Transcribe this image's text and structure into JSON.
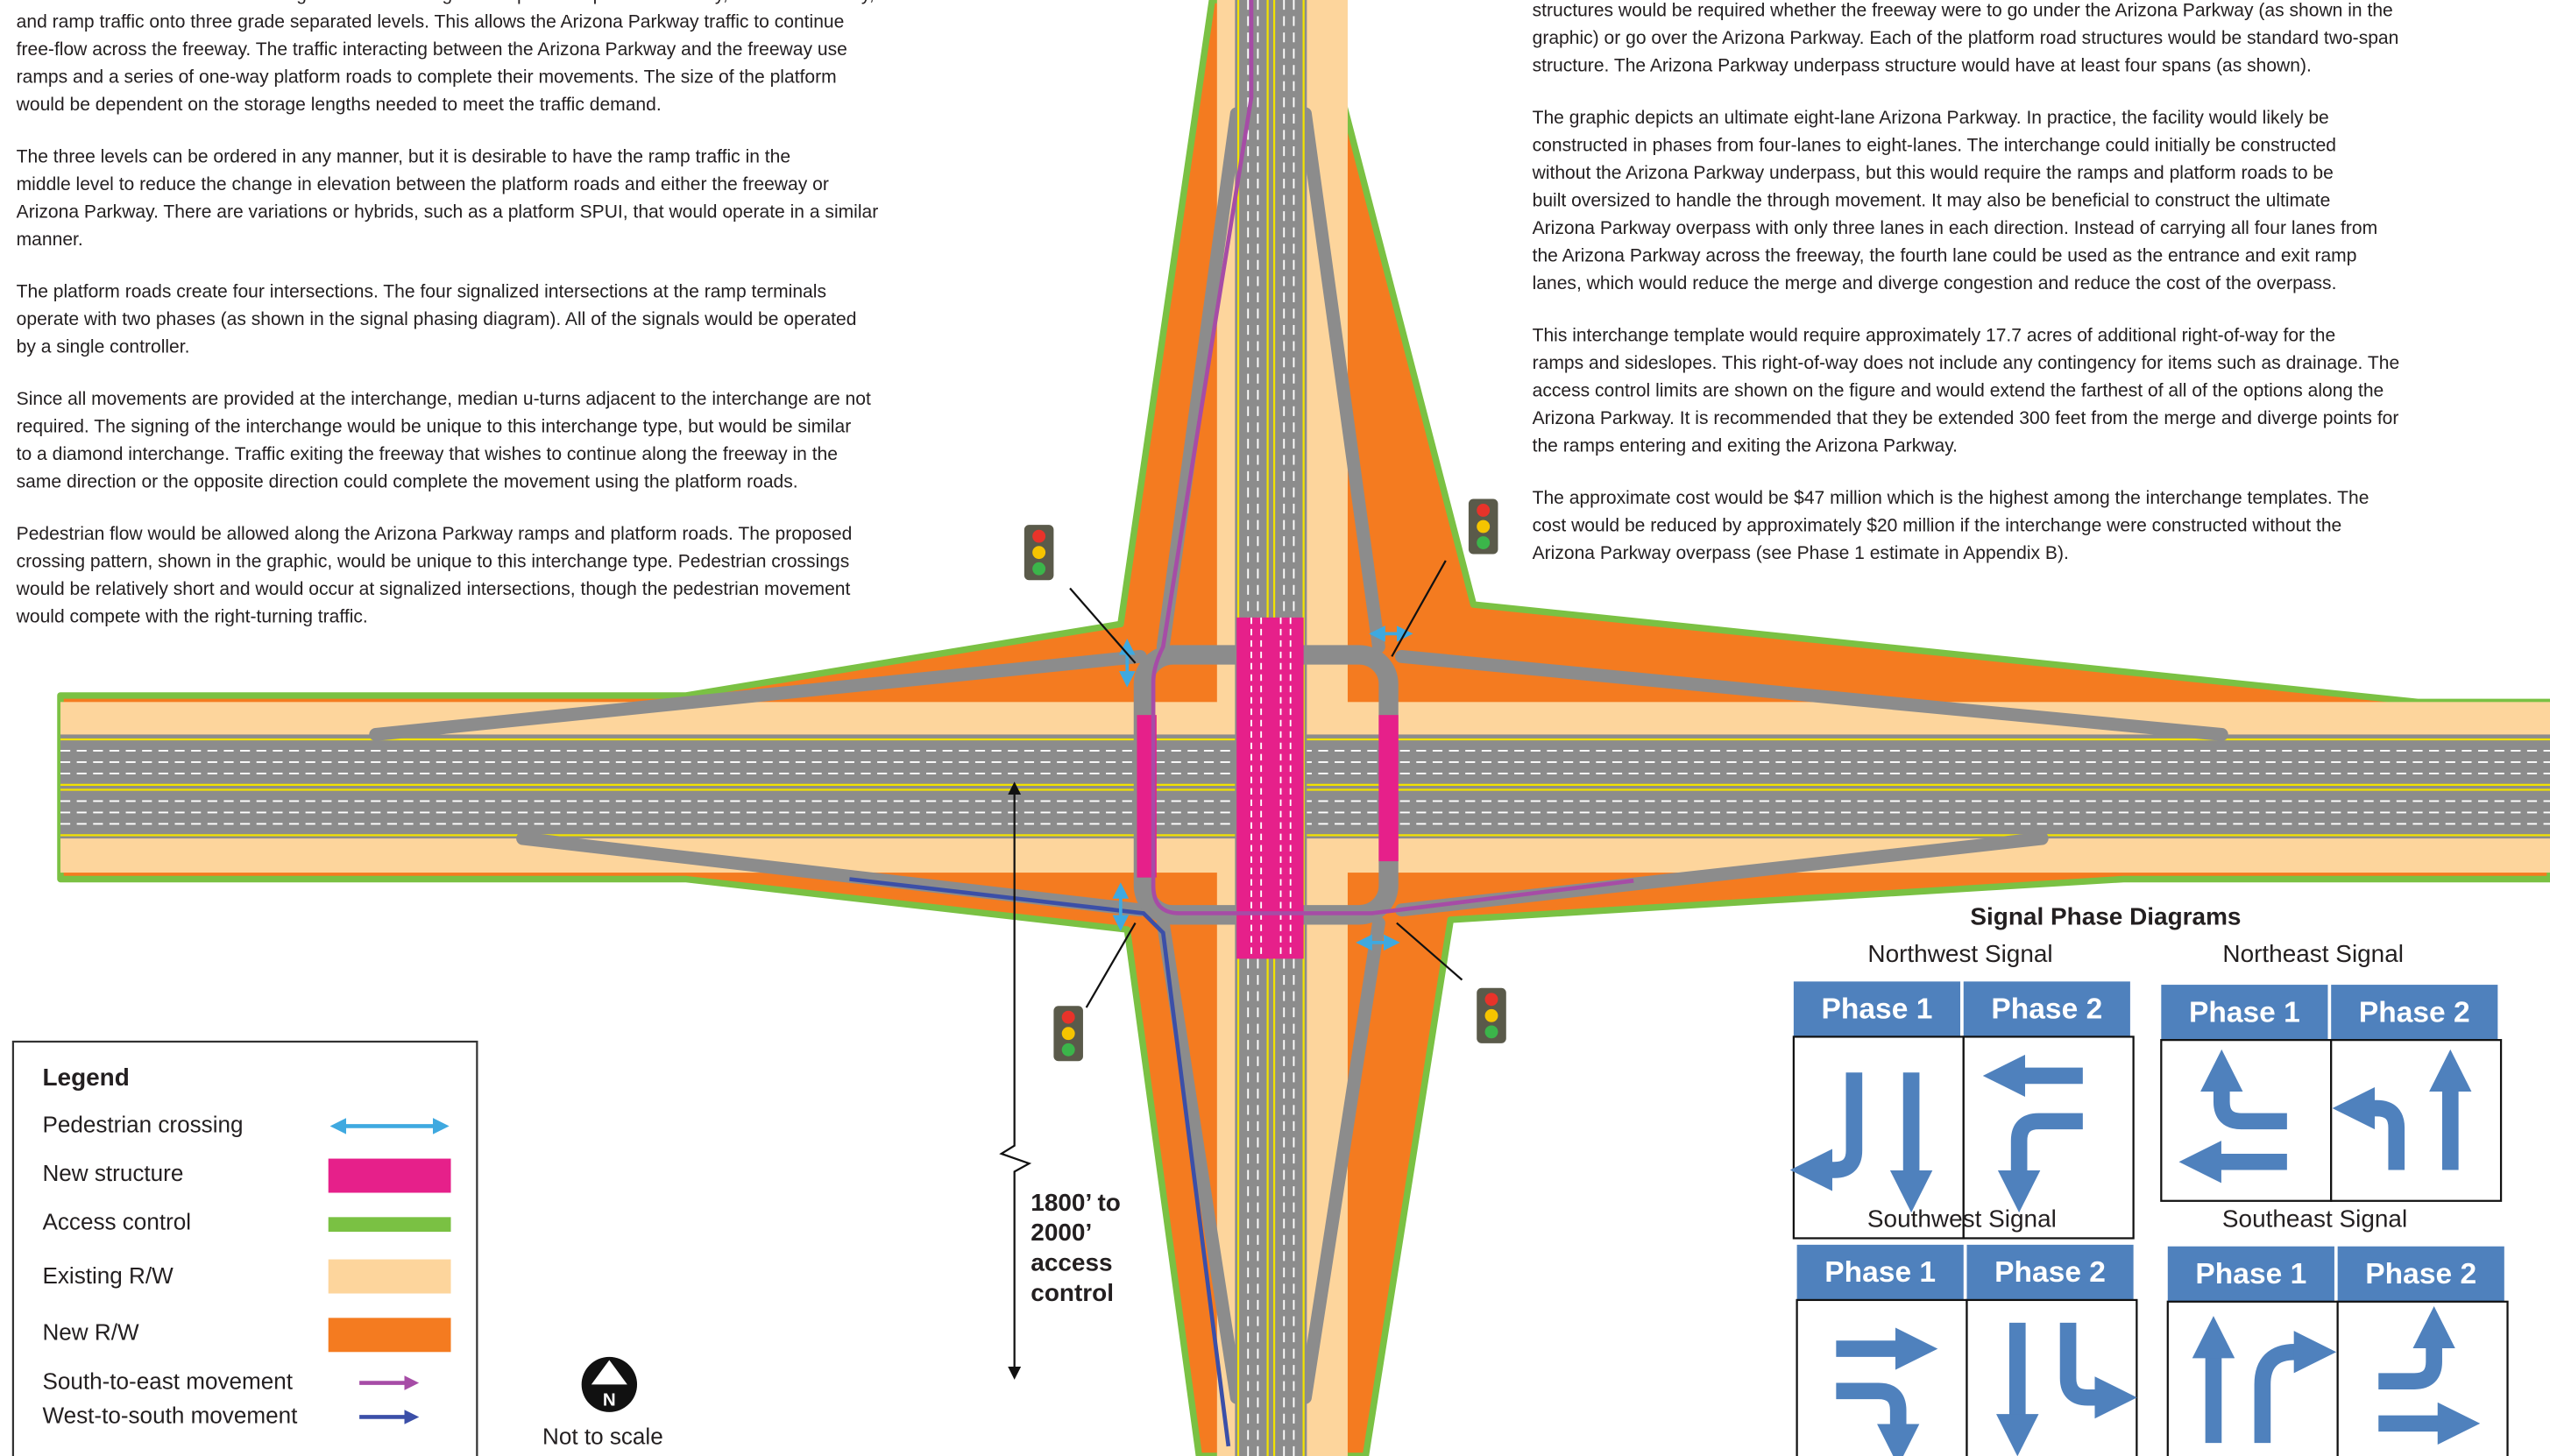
{
  "left_text": {
    "paragraphs": [
      [
        "The three-level diamond interchange is an interchange concept that separates freeway, Arizona Parkway,",
        "and ramp traffic onto three grade separated levels. This allows the Arizona Parkway traffic to continue",
        "free-flow across the freeway. The traffic interacting between the Arizona Parkway and the freeway use",
        "ramps and a series of one-way platform roads to complete their movements. The size of the platform",
        "would be dependent on the storage lengths needed to meet the traffic demand."
      ],
      [
        "The three levels can be ordered in any manner, but it is desirable to have the ramp traffic in the",
        "middle level to reduce the change in elevation between the platform roads and either the freeway or",
        "Arizona Parkway. There are variations or hybrids, such as a platform SPUI, that would operate in a similar",
        "manner."
      ],
      [
        "The platform roads create four intersections. The four signalized intersections at the ramp terminals",
        "operate with two phases (as shown in the signal phasing diagram). All of the signals would be operated",
        "by a single controller."
      ],
      [
        "Since all movements are provided at the interchange, median u-turns adjacent to the interchange are not",
        "required. The signing of the interchange would be unique to this interchange type, but would be similar",
        "to a diamond interchange. Traffic exiting the freeway that wishes to continue along the freeway in the",
        "same direction or the opposite direction could complete the movement using the platform roads."
      ],
      [
        "Pedestrian flow would be allowed along the Arizona Parkway ramps and platform roads. The proposed",
        "crossing pattern, shown in the graphic, would be unique to this interchange type. Pedestrian crossings",
        "would be relatively short and would occur at signalized intersections, though the pedestrian movement",
        "would compete with the right-turning traffic."
      ]
    ]
  },
  "right_text": {
    "paragraphs": [
      [
        "structures would be required whether the freeway were to go under the Arizona Parkway (as shown in the",
        "graphic) or go over the Arizona Parkway. Each of the platform road structures would be standard two-span",
        "structure. The Arizona Parkway underpass structure would have at least four spans (as shown)."
      ],
      [
        "The graphic depicts an ultimate eight-lane Arizona Parkway. In practice, the facility would likely be",
        "constructed in phases from four-lanes to eight-lanes. The interchange could initially be constructed",
        "without the Arizona Parkway underpass, but this would require the ramps and platform roads to be",
        "built oversized to handle the through movement. It may also be beneficial to construct the ultimate",
        "Arizona Parkway overpass with only three lanes in each direction. Instead of carrying all four lanes from",
        "the Arizona Parkway across the freeway, the fourth lane could be used as the entrance and exit ramp",
        "lanes, which would reduce the merge and diverge congestion and reduce the cost of the overpass."
      ],
      [
        "This interchange template would require approximately 17.7 acres of additional right-of-way for the",
        "ramps and sideslopes. This right-of-way does not include any contingency for items such as drainage. The",
        "access control limits are shown on the figure and would extend the farthest of all of the options along the",
        "Arizona Parkway. It is recommended that they be extended 300 feet from the merge and diverge points for",
        "the ramps entering and exiting the Arizona Parkway."
      ],
      [
        "The approximate cost would be $47 million which is the highest among the interchange templates. The",
        "cost would be reduced by approximately $20 million if the interchange were constructed without the",
        "Arizona Parkway overpass (see Phase 1 estimate in Appendix B)."
      ]
    ]
  },
  "figure": {
    "access_control_note": [
      "1800’ to",
      "2000’",
      "access",
      "control"
    ],
    "north_label": "N",
    "scale_note": "Not to scale"
  },
  "legend": {
    "title": "Legend",
    "items": [
      "Pedestrian crossing",
      "New structure",
      "Access control",
      "Existing R/W",
      "New R/W",
      "South-to-east movement",
      "West-to-south movement"
    ]
  },
  "signal_phase_diagrams": {
    "title": "Signal Phase Diagrams",
    "signals": [
      {
        "name": "Northwest Signal",
        "phases": [
          "Phase 1",
          "Phase 2"
        ]
      },
      {
        "name": "Northeast Signal",
        "phases": [
          "Phase 1",
          "Phase 2"
        ]
      },
      {
        "name": "Southwest Signal",
        "phases": [
          "Phase 1",
          "Phase 2"
        ]
      },
      {
        "name": "Southeast Signal",
        "phases": [
          "Phase 1",
          "Phase 2"
        ]
      }
    ]
  }
}
